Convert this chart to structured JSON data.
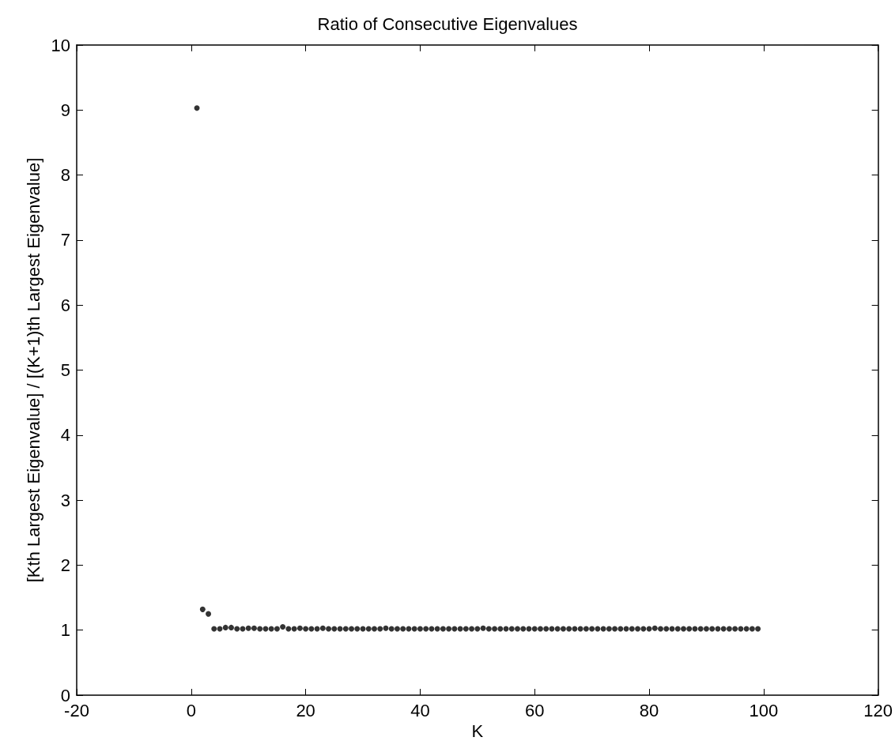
{
  "chart_data": {
    "type": "scatter",
    "title": "Ratio of Consecutive Eigenvalues",
    "xlabel": "K",
    "ylabel": "[Kth Largest Eigenvalue] / [(K+1)th Largest Eigenvalue]",
    "x": [
      1,
      2,
      3,
      4,
      5,
      6,
      7,
      8,
      9,
      10,
      11,
      12,
      13,
      14,
      15,
      16,
      17,
      18,
      19,
      20,
      21,
      22,
      23,
      24,
      25,
      26,
      27,
      28,
      29,
      30,
      31,
      32,
      33,
      34,
      35,
      36,
      37,
      38,
      39,
      40,
      41,
      42,
      43,
      44,
      45,
      46,
      47,
      48,
      49,
      50,
      51,
      52,
      53,
      54,
      55,
      56,
      57,
      58,
      59,
      60,
      61,
      62,
      63,
      64,
      65,
      66,
      67,
      68,
      69,
      70,
      71,
      72,
      73,
      74,
      75,
      76,
      77,
      78,
      79,
      80,
      81,
      82,
      83,
      84,
      85,
      86,
      87,
      88,
      89,
      90,
      91,
      92,
      93,
      94,
      95,
      96,
      97,
      98,
      99
    ],
    "values": [
      9.03,
      1.32,
      1.25,
      1.02,
      1.02,
      1.04,
      1.04,
      1.02,
      1.02,
      1.03,
      1.03,
      1.02,
      1.02,
      1.02,
      1.02,
      1.05,
      1.02,
      1.02,
      1.03,
      1.02,
      1.02,
      1.02,
      1.03,
      1.02,
      1.02,
      1.02,
      1.02,
      1.02,
      1.02,
      1.02,
      1.02,
      1.02,
      1.02,
      1.03,
      1.02,
      1.02,
      1.02,
      1.02,
      1.02,
      1.02,
      1.02,
      1.02,
      1.02,
      1.02,
      1.02,
      1.02,
      1.02,
      1.02,
      1.02,
      1.02,
      1.03,
      1.02,
      1.02,
      1.02,
      1.02,
      1.02,
      1.02,
      1.02,
      1.02,
      1.02,
      1.02,
      1.02,
      1.02,
      1.02,
      1.02,
      1.02,
      1.02,
      1.02,
      1.02,
      1.02,
      1.02,
      1.02,
      1.02,
      1.02,
      1.02,
      1.02,
      1.02,
      1.02,
      1.02,
      1.02,
      1.03,
      1.02,
      1.02,
      1.02,
      1.02,
      1.02,
      1.02,
      1.02,
      1.02,
      1.02,
      1.02,
      1.02,
      1.02,
      1.02,
      1.02,
      1.02,
      1.02,
      1.02,
      1.02
    ],
    "color": "#000000",
    "marker": "circle",
    "grid": false,
    "xlim": [
      -20,
      120
    ],
    "xticks": [
      -20,
      0,
      20,
      40,
      60,
      80,
      100,
      120
    ],
    "ylim": [
      0,
      10
    ],
    "yticks": [
      0,
      1,
      2,
      3,
      4,
      5,
      6,
      7,
      8,
      9,
      10
    ]
  }
}
